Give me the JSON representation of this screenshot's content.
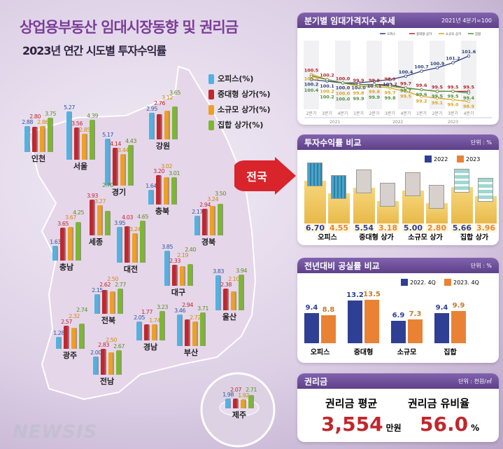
{
  "title": "상업용부동산 임대시장동향 및 권리금",
  "subtitle": "2023년 연간 시도별 투자수익률",
  "colors": {
    "office": "#4fb3e3",
    "mid_large": "#c0272d",
    "small": "#f0a020",
    "aggregate": "#7cb82f",
    "purple": "#6b4a9a",
    "blue2022": "#2e3f94",
    "orange2023": "#ea8235",
    "red_value": "#c0272d"
  },
  "map_legend": [
    "오피스(%)",
    "중대형 상가(%)",
    "소규모 상가(%)",
    "집합 상가(%)"
  ],
  "arrow_label": "전국",
  "chart_data": [
    {
      "type": "bar",
      "title": "2023년 연간 시도별 투자수익률",
      "series_names": [
        "오피스(%)",
        "중대형 상가(%)",
        "소규모 상가(%)",
        "집합 상가(%)"
      ],
      "regions": [
        {
          "name": "인천",
          "values": [
            2.88,
            2.8,
            2.86,
            3.75
          ]
        },
        {
          "name": "서울",
          "values": [
            5.27,
            3.56,
            2.85,
            4.39
          ]
        },
        {
          "name": "경기",
          "values": [
            5.17,
            4.14,
            3.44,
            4.43
          ]
        },
        {
          "name": "강원",
          "values": [
            2.95,
            2.76,
            3.12,
            3.65
          ]
        },
        {
          "name": "충북",
          "values": [
            1.64,
            3.2,
            3.02,
            3.01
          ]
        },
        {
          "name": "세종",
          "values": [
            null,
            3.93,
            3.27,
            2.7
          ]
        },
        {
          "name": "충남",
          "values": [
            1.63,
            3.65,
            3.67,
            4.25
          ]
        },
        {
          "name": "대전",
          "values": [
            3.95,
            4.03,
            3.24,
            4.65
          ]
        },
        {
          "name": "경북",
          "values": [
            2.17,
            2.94,
            3.24,
            3.5
          ]
        },
        {
          "name": "대구",
          "values": [
            3.85,
            2.33,
            2.19,
            2.4
          ]
        },
        {
          "name": "울산",
          "values": [
            3.83,
            2.38,
            2.1,
            3.94
          ]
        },
        {
          "name": "전북",
          "values": [
            2.15,
            2.62,
            2.5,
            2.77
          ]
        },
        {
          "name": "경남",
          "values": [
            2.05,
            1.77,
            1.74,
            3.23
          ]
        },
        {
          "name": "부산",
          "values": [
            3.46,
            2.94,
            2.72,
            3.71
          ]
        },
        {
          "name": "광주",
          "values": [
            1.28,
            2.57,
            2.32,
            2.74
          ]
        },
        {
          "name": "전남",
          "values": [
            2.0,
            2.83,
            2.5,
            2.67
          ]
        },
        {
          "name": "제주",
          "values": [
            1.98,
            2.07,
            1.92,
            2.71
          ]
        }
      ]
    },
    {
      "type": "line",
      "title": "분기별 임대가격지수 추세",
      "note": "2021년 4분기=100",
      "x": [
        "2분기",
        "3분기",
        "4분기",
        "1분기",
        "2분기",
        "3분기",
        "4분기",
        "1분기",
        "2분기",
        "3분기",
        "4분기"
      ],
      "years": [
        "2021",
        "2022",
        "2023"
      ],
      "series": [
        {
          "name": "오피스",
          "color": "#2e3f7a",
          "values": [
            100.2,
            100.1,
            100.0,
            100.0,
            100.1,
            100.2,
            100.4,
            100.7,
            100.9,
            101.2,
            101.6
          ]
        },
        {
          "name": "중대형 상가",
          "color": "#b3262c",
          "values": [
            100.5,
            100.2,
            100.0,
            99.9,
            99.9,
            99.9,
            99.7,
            99.6,
            99.5,
            99.5,
            99.5
          ]
        },
        {
          "name": "소규모 상가",
          "color": "#d9a320",
          "values": [
            100.5,
            100.2,
            100.0,
            99.8,
            99.8,
            99.7,
            99.5,
            99.2,
            99.1,
            99.0,
            98.9
          ]
        },
        {
          "name": "집합",
          "color": "#4f8f3a",
          "values": [
            100.4,
            100.2,
            100.0,
            99.9,
            99.9,
            99.8,
            99.7,
            99.6,
            99.5,
            99.5,
            99.4
          ]
        }
      ]
    },
    {
      "type": "bar",
      "title": "투자수익률 비교",
      "unit": "단위 : %",
      "categories": [
        "오피스",
        "중대형 상가",
        "소규모 상가",
        "집합 상가"
      ],
      "series": [
        {
          "name": "2022",
          "values": [
            6.7,
            5.54,
            5.0,
            5.66
          ]
        },
        {
          "name": "2023",
          "values": [
            4.55,
            3.18,
            2.8,
            3.96
          ]
        }
      ]
    },
    {
      "type": "bar",
      "title": "전년대비 공실률 비교",
      "unit": "단위 : %",
      "categories": [
        "오피스",
        "중대형",
        "소규모",
        "집합"
      ],
      "series": [
        {
          "name": "2022. 4Q",
          "values": [
            9.4,
            13.2,
            6.9,
            9.4
          ]
        },
        {
          "name": "2023. 4Q",
          "values": [
            8.8,
            13.5,
            7.3,
            9.9
          ]
        }
      ]
    }
  ],
  "key_money": {
    "title": "권리금",
    "unit": "단위 : 천원/㎡",
    "avg_label": "권리금 평균",
    "avg_value": "3,554",
    "avg_unit": "만원",
    "ratio_label": "권리금 유비율",
    "ratio_value": "56.0",
    "ratio_unit": "%"
  },
  "watermark": "NEWSIS"
}
